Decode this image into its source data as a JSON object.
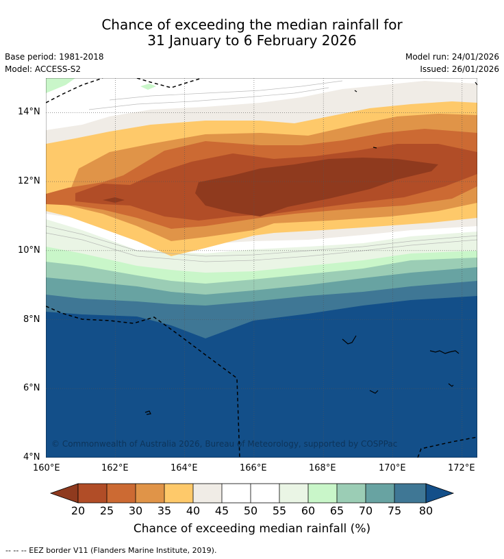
{
  "header": {
    "title_line1": "Chance of exceeding the median rainfall for",
    "title_line2": "31 January to 6 February 2026",
    "base_period": "Base period: 1981-2018",
    "model": "Model: ACCESS-S2",
    "model_run": "Model run: 24/01/2026",
    "issued": "Issued: 26/01/2026"
  },
  "map": {
    "lon_range": [
      160,
      172.5
    ],
    "lat_range": [
      4,
      15
    ],
    "lon_ticks": [
      "160°E",
      "162°E",
      "164°E",
      "166°E",
      "168°E",
      "170°E",
      "172°E"
    ],
    "lat_ticks": [
      "14°N",
      "12°N",
      "10°N",
      "8°N",
      "6°N",
      "4°N"
    ],
    "copyright": "© Commonwealth of Australia 2026, Bureau of Meteorology, supported by COSPPac"
  },
  "colorbar": {
    "ticks": [
      "20",
      "25",
      "30",
      "35",
      "40",
      "45",
      "50",
      "55",
      "60",
      "65",
      "70",
      "75",
      "80"
    ],
    "title": "Chance of exceeding median rainfall (%)",
    "colors": [
      "#8f3a1e",
      "#b14d27",
      "#cc6a33",
      "#e09448",
      "#fec96a",
      "#f0ece6",
      "#ffffff",
      "#ffffff",
      "#eaf5e5",
      "#c9f6c9",
      "#9bcdb5",
      "#68a3a2",
      "#3f7795",
      "#134f89"
    ],
    "colors_note": "first and last are the under/over triangles"
  },
  "legend": {
    "eez_note": "--  --  -- EEZ border V11 (Flanders Marine Institute, 2019)."
  }
}
